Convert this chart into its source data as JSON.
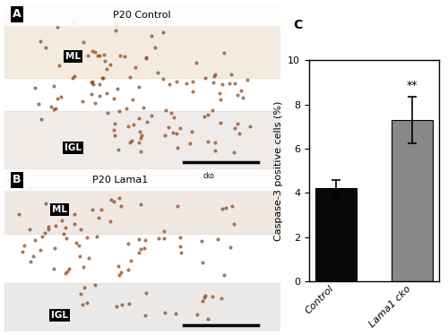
{
  "categories": [
    "Control",
    "Lama1 cko"
  ],
  "values": [
    4.2,
    7.3
  ],
  "errors": [
    0.4,
    1.05
  ],
  "bar_colors": [
    "#080808",
    "#888888"
  ],
  "ylabel": "Caspase-3 positive cells (%)",
  "ylim": [
    0,
    10
  ],
  "yticks": [
    0,
    2,
    4,
    6,
    8,
    10
  ],
  "chart_title": "C",
  "panel_a_title": "A",
  "panel_b_title": "B",
  "significance_label": "**",
  "significance_bar_index": 1,
  "bar_width": 0.55,
  "figure_width": 5.0,
  "figure_height": 3.74,
  "dpi": 100,
  "background_color": "#ffffff",
  "tick_fontsize": 8,
  "label_fontsize": 8,
  "title_fontsize": 10,
  "panel_title_a": "P20 Control",
  "panel_title_b": "P20 Lama1",
  "panel_title_b_super": "cko",
  "ml_label": "ML",
  "igl_label": "IGL",
  "outer_border_color": "#cccccc",
  "image_bg_color_a": "#d8c9b0",
  "image_bg_color_b": "#d4ccc0"
}
